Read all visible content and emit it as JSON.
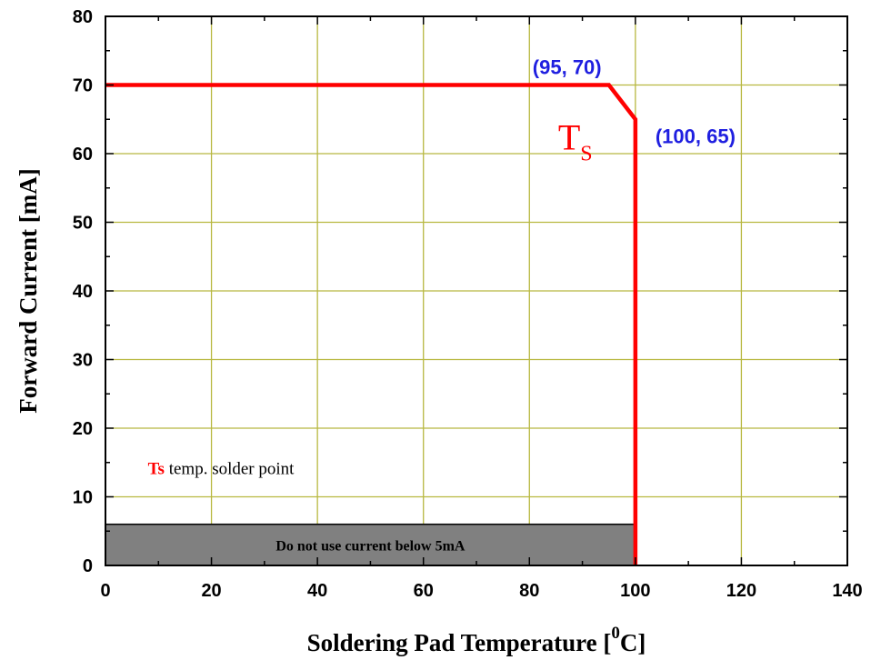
{
  "chart_data": {
    "type": "line",
    "xlabel": "Soldering Pad Temperature [",
    "xlabel_sup": "0",
    "xlabel_tail": "C]",
    "ylabel": "Forward Current [mA]",
    "xlim": [
      0,
      140
    ],
    "ylim": [
      0,
      80
    ],
    "x_ticks": [
      0,
      20,
      40,
      60,
      80,
      100,
      120,
      140
    ],
    "y_ticks": [
      0,
      10,
      20,
      30,
      40,
      50,
      60,
      70,
      80
    ],
    "x_tick_labels": [
      "0",
      "20",
      "40",
      "60",
      "80",
      "100",
      "120",
      "140"
    ],
    "y_tick_labels": [
      "0",
      "10",
      "20",
      "30",
      "40",
      "50",
      "60",
      "70",
      "80"
    ],
    "grid": true,
    "series": [
      {
        "x": [
          0,
          95,
          100,
          100
        ],
        "y": [
          70,
          70,
          65,
          0
        ],
        "color": "#ff0000"
      }
    ],
    "annotations": [
      {
        "text": "(95, 70)",
        "x": 95,
        "y": 70,
        "color": "#1f1fe0"
      },
      {
        "text": "(100, 65)",
        "x": 100,
        "y": 65,
        "color": "#1f1fe0"
      }
    ],
    "curve_label": {
      "main": "T",
      "sub": "S",
      "color": "#ff0000"
    },
    "legend_note": {
      "key": "Ts",
      "text": " temp. solder point",
      "key_color": "#ff0000"
    },
    "restricted_band": {
      "x_range": [
        0,
        100
      ],
      "y_range": [
        0,
        6
      ],
      "label": "Do not use current below 5mA",
      "fill": "#808080"
    },
    "grid_color": "#b8b840"
  }
}
